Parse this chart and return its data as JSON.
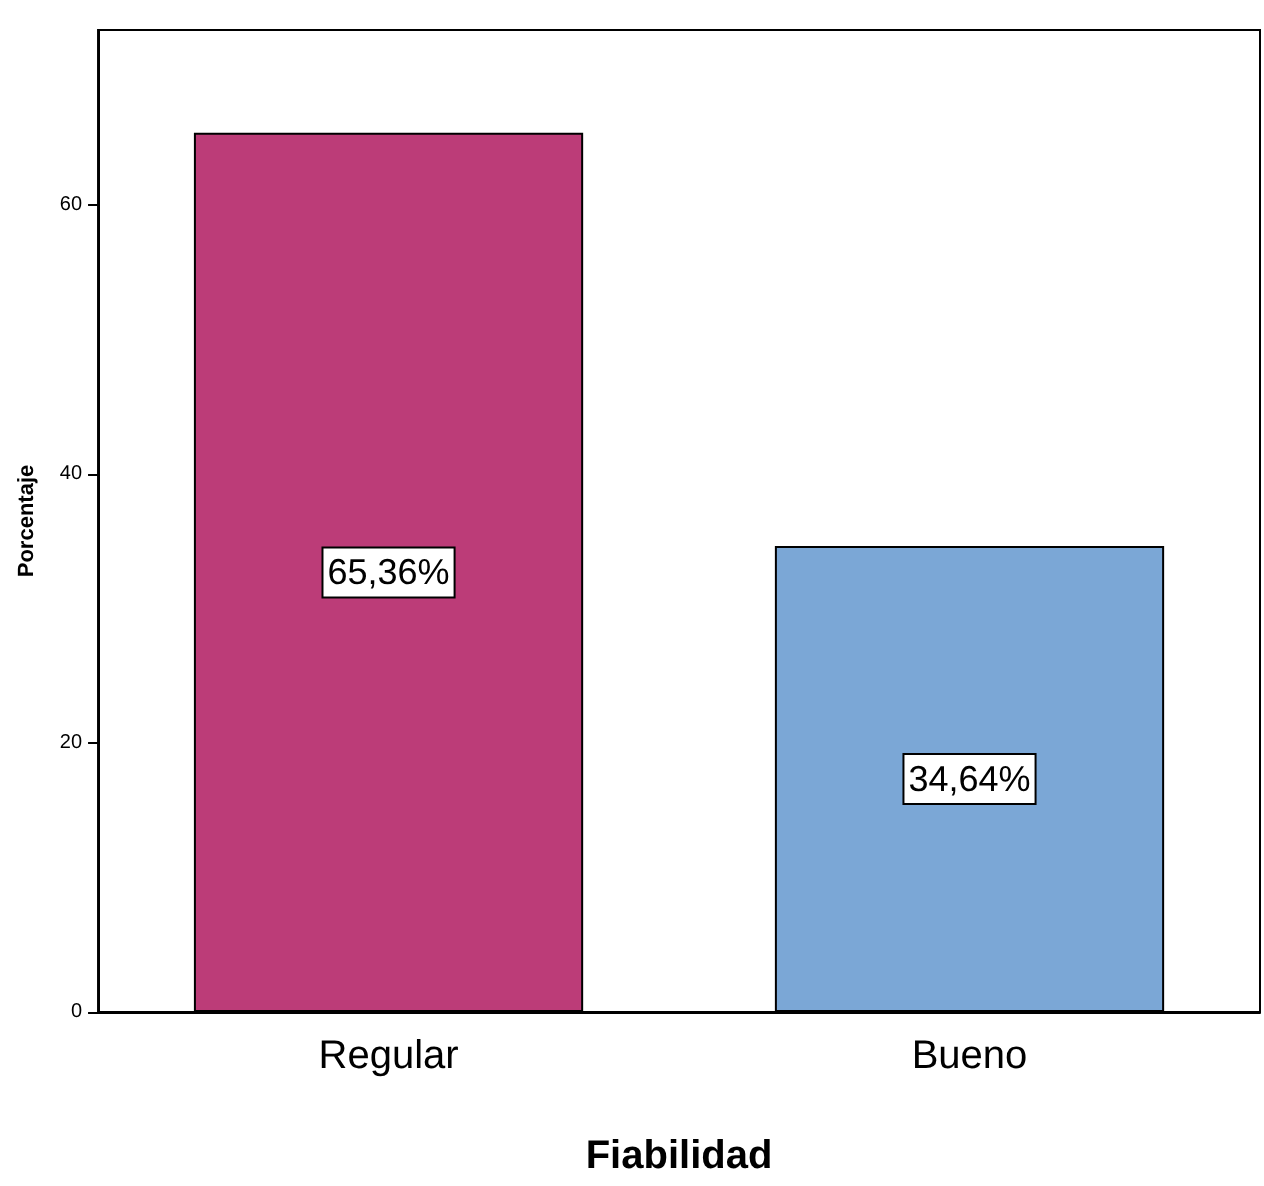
{
  "chart_data": {
    "type": "bar",
    "xlabel": "Fiabilidad",
    "ylabel": "Porcentaje",
    "categories": [
      "Regular",
      "Bueno"
    ],
    "values": [
      65.36,
      34.64
    ],
    "value_labels": [
      "65,36%",
      "34,64%"
    ],
    "colors": [
      "#bc3c78",
      "#7ba7d6"
    ],
    "ylim": [
      0,
      73
    ],
    "yticks": [
      0,
      20,
      40,
      60
    ],
    "grid": false
  }
}
